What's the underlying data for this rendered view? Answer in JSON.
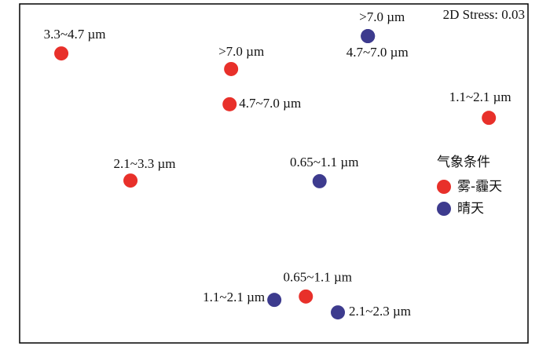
{
  "chart_data": {
    "type": "scatter",
    "annotation": "2D Stress: 0.03",
    "legend_title": "气象条件",
    "legend": "right",
    "xlim": [
      0,
      100
    ],
    "ylim": [
      0,
      100
    ],
    "series": [
      {
        "name": "雾-霾天",
        "color": "#e8302a",
        "x": [
          8.2,
          41.6,
          41.3,
          92.3,
          21.8,
          56.3
        ],
        "values": [
          85.4,
          80.8,
          70.4,
          66.4,
          47.9,
          13.7
        ],
        "labels": [
          "3.3~4.7 µm",
          ">7.0 µm",
          "4.7~7.0 µm",
          "1.1~2.1 µm",
          "2.1~3.3 µm",
          "0.65~1.1 µm"
        ]
      },
      {
        "name": "晴天",
        "color": "#3d3b8e",
        "x": [
          68.5,
          68.5,
          59.0,
          50.1,
          62.6
        ],
        "values": [
          90.5,
          90.5,
          47.7,
          12.7,
          9.0
        ],
        "labels": [
          ">7.0 µm",
          "4.7~7.0 µm",
          "0.65~1.1 µm",
          "1.1~2.1 µm",
          "2.1~2.3 µm"
        ]
      }
    ]
  }
}
